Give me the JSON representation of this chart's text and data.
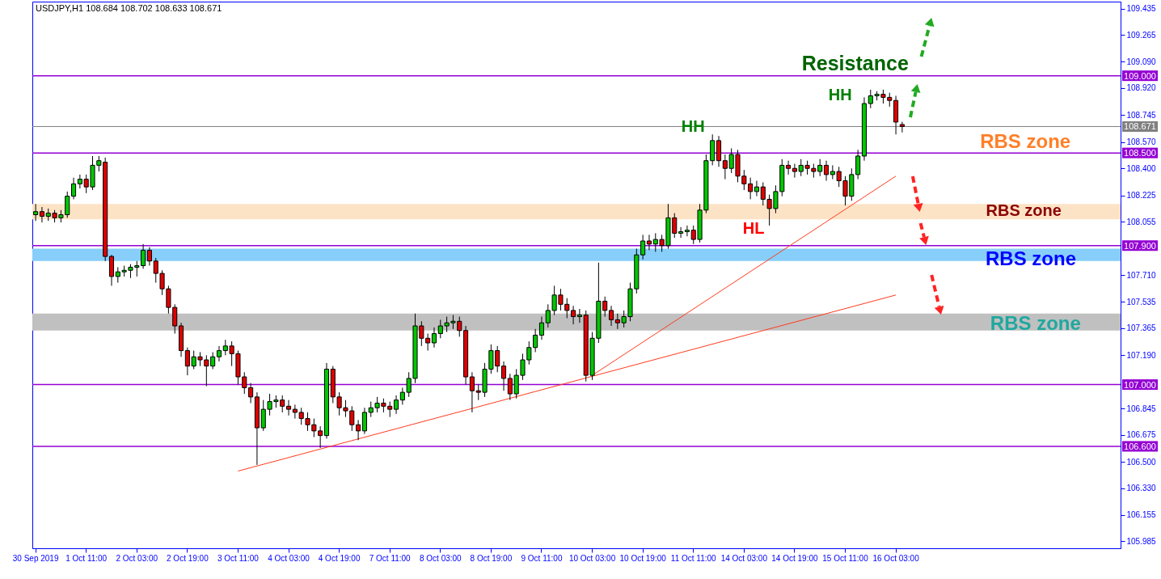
{
  "chart_data": {
    "type": "candlestick",
    "title": "USDJPY,H1  108.684 108.702 108.633 108.671",
    "categories": [
      "30 Sep 2019",
      null,
      null,
      null,
      null,
      null,
      null,
      null,
      "1 Oct 11:00",
      null,
      null,
      null,
      null,
      null,
      null,
      null,
      "2 Oct 03:00",
      null,
      null,
      null,
      null,
      null,
      null,
      null,
      "2 Oct 19:00",
      null,
      null,
      null,
      null,
      null,
      null,
      null,
      "3 Oct 11:00",
      null,
      null,
      null,
      null,
      null,
      null,
      null,
      "4 Oct 03:00",
      null,
      null,
      null,
      null,
      null,
      null,
      null,
      "4 Oct 19:00",
      null,
      null,
      null,
      null,
      null,
      null,
      null,
      "7 Oct 11:00",
      null,
      null,
      null,
      null,
      null,
      null,
      null,
      "8 Oct 03:00",
      null,
      null,
      null,
      null,
      null,
      null,
      null,
      "8 Oct 19:00",
      null,
      null,
      null,
      null,
      null,
      null,
      null,
      "9 Oct 11:00",
      null,
      null,
      null,
      null,
      null,
      null,
      null,
      "10 Oct 03:00",
      null,
      null,
      null,
      null,
      null,
      null,
      null,
      "10 Oct 19:00",
      null,
      null,
      null,
      null,
      null,
      null,
      null,
      "11 Oct 11:00",
      null,
      null,
      null,
      null,
      null,
      null,
      null,
      "14 Oct 03:00",
      null,
      null,
      null,
      null,
      null,
      null,
      null,
      "14 Oct 19:00",
      null,
      null,
      null,
      null,
      null,
      null,
      null,
      "15 Oct 11:00",
      null,
      null,
      null,
      null,
      null,
      null,
      null,
      "16 Oct 03:00",
      null,
      null,
      null,
      null,
      null,
      null,
      null,
      null,
      null,
      null,
      null,
      null,
      null,
      null,
      null,
      null,
      null,
      null,
      null,
      null,
      null,
      null,
      null,
      null,
      null,
      null,
      null,
      null,
      null,
      null,
      null,
      null,
      null,
      null,
      null
    ],
    "ohlc": [
      [
        108.1,
        108.17,
        108.06,
        108.12
      ],
      [
        108.12,
        108.15,
        108.05,
        108.09
      ],
      [
        108.09,
        108.14,
        108.06,
        108.11
      ],
      [
        108.11,
        108.13,
        108.05,
        108.08
      ],
      [
        108.08,
        108.13,
        108.05,
        108.1
      ],
      [
        108.1,
        108.25,
        108.08,
        108.22
      ],
      [
        108.22,
        108.34,
        108.2,
        108.3
      ],
      [
        108.3,
        108.36,
        108.27,
        108.33
      ],
      [
        108.33,
        108.36,
        108.24,
        108.28
      ],
      [
        108.28,
        108.48,
        108.26,
        108.42
      ],
      [
        108.42,
        108.48,
        108.38,
        108.45
      ],
      [
        108.44,
        108.47,
        107.8,
        107.83
      ],
      [
        107.83,
        107.84,
        107.64,
        107.7
      ],
      [
        107.7,
        107.76,
        107.66,
        107.73
      ],
      [
        107.73,
        107.77,
        107.7,
        107.74
      ],
      [
        107.74,
        107.78,
        107.69,
        107.76
      ],
      [
        107.76,
        107.8,
        107.7,
        107.77
      ],
      [
        107.77,
        107.91,
        107.75,
        107.87
      ],
      [
        107.87,
        107.89,
        107.77,
        107.8
      ],
      [
        107.8,
        107.82,
        107.66,
        107.72
      ],
      [
        107.72,
        107.74,
        107.58,
        107.62
      ],
      [
        107.62,
        107.64,
        107.46,
        107.5
      ],
      [
        107.5,
        107.52,
        107.33,
        107.38
      ],
      [
        107.38,
        107.4,
        107.18,
        107.22
      ],
      [
        107.22,
        107.24,
        107.06,
        107.12
      ],
      [
        107.12,
        107.22,
        107.1,
        107.18
      ],
      [
        107.18,
        107.21,
        107.12,
        107.16
      ],
      [
        107.16,
        107.19,
        106.99,
        107.12
      ],
      [
        107.12,
        107.21,
        107.1,
        107.18
      ],
      [
        107.18,
        107.25,
        107.15,
        107.22
      ],
      [
        107.22,
        107.29,
        107.19,
        107.25
      ],
      [
        107.25,
        107.28,
        107.12,
        107.2
      ],
      [
        107.2,
        107.22,
        107.0,
        107.05
      ],
      [
        107.05,
        107.08,
        106.94,
        106.98
      ],
      [
        106.98,
        107.01,
        106.88,
        106.92
      ],
      [
        106.92,
        106.95,
        106.48,
        106.72
      ],
      [
        106.72,
        106.9,
        106.7,
        106.84
      ],
      [
        106.84,
        106.94,
        106.8,
        106.89
      ],
      [
        106.89,
        106.93,
        106.85,
        106.9
      ],
      [
        106.9,
        106.93,
        106.82,
        106.86
      ],
      [
        106.86,
        106.9,
        106.8,
        106.84
      ],
      [
        106.84,
        106.87,
        106.78,
        106.82
      ],
      [
        106.82,
        106.85,
        106.74,
        106.78
      ],
      [
        106.78,
        106.82,
        106.7,
        106.74
      ],
      [
        106.74,
        106.78,
        106.66,
        106.7
      ],
      [
        106.7,
        106.73,
        106.59,
        106.67
      ],
      [
        106.67,
        107.14,
        106.65,
        107.1
      ],
      [
        107.1,
        107.12,
        106.88,
        106.92
      ],
      [
        106.92,
        106.95,
        106.8,
        106.85
      ],
      [
        106.85,
        106.9,
        106.79,
        106.83
      ],
      [
        106.83,
        106.86,
        106.7,
        106.74
      ],
      [
        106.74,
        106.77,
        106.64,
        106.7
      ],
      [
        106.7,
        106.85,
        106.68,
        106.82
      ],
      [
        106.82,
        106.89,
        106.79,
        106.85
      ],
      [
        106.85,
        106.92,
        106.82,
        106.88
      ],
      [
        106.88,
        106.91,
        106.82,
        106.86
      ],
      [
        106.86,
        106.89,
        106.79,
        106.84
      ],
      [
        106.84,
        106.93,
        106.81,
        106.9
      ],
      [
        106.9,
        106.98,
        106.87,
        106.95
      ],
      [
        106.95,
        107.08,
        106.92,
        107.04
      ],
      [
        107.04,
        107.46,
        107.01,
        107.38
      ],
      [
        107.38,
        107.41,
        107.25,
        107.3
      ],
      [
        107.3,
        107.33,
        107.22,
        107.27
      ],
      [
        107.27,
        107.37,
        107.24,
        107.33
      ],
      [
        107.33,
        107.42,
        107.3,
        107.38
      ],
      [
        107.38,
        107.44,
        107.34,
        107.4
      ],
      [
        107.4,
        107.45,
        107.36,
        107.41
      ],
      [
        107.41,
        107.44,
        107.31,
        107.35
      ],
      [
        107.35,
        107.38,
        107.0,
        107.05
      ],
      [
        107.05,
        107.08,
        106.82,
        106.96
      ],
      [
        106.96,
        107.0,
        106.9,
        106.95
      ],
      [
        106.95,
        107.14,
        106.92,
        107.1
      ],
      [
        107.1,
        107.26,
        107.07,
        107.22
      ],
      [
        107.22,
        107.25,
        107.08,
        107.12
      ],
      [
        107.12,
        107.15,
        106.96,
        107.04
      ],
      [
        107.04,
        107.07,
        106.9,
        106.94
      ],
      [
        106.94,
        107.1,
        106.91,
        107.06
      ],
      [
        107.06,
        107.2,
        107.03,
        107.16
      ],
      [
        107.16,
        107.28,
        107.13,
        107.24
      ],
      [
        107.24,
        107.36,
        107.21,
        107.32
      ],
      [
        107.32,
        107.44,
        107.29,
        107.4
      ],
      [
        107.4,
        107.52,
        107.37,
        107.48
      ],
      [
        107.48,
        107.64,
        107.45,
        107.58
      ],
      [
        107.58,
        107.62,
        107.48,
        107.52
      ],
      [
        107.52,
        107.56,
        107.43,
        107.48
      ],
      [
        107.48,
        107.51,
        107.39,
        107.44
      ],
      [
        107.44,
        107.49,
        107.4,
        107.45
      ],
      [
        107.45,
        107.48,
        107.02,
        107.06
      ],
      [
        107.06,
        107.34,
        107.03,
        107.3
      ],
      [
        107.3,
        107.79,
        107.27,
        107.54
      ],
      [
        107.54,
        107.57,
        107.44,
        107.48
      ],
      [
        107.48,
        107.51,
        107.38,
        107.42
      ],
      [
        107.42,
        107.46,
        107.36,
        107.4
      ],
      [
        107.4,
        107.48,
        107.37,
        107.44
      ],
      [
        107.44,
        107.66,
        107.41,
        107.62
      ],
      [
        107.62,
        107.88,
        107.59,
        107.84
      ],
      [
        107.84,
        107.97,
        107.81,
        107.93
      ],
      [
        107.93,
        107.97,
        107.87,
        107.91
      ],
      [
        107.91,
        107.98,
        107.86,
        107.94
      ],
      [
        107.94,
        107.97,
        107.86,
        107.9
      ],
      [
        107.9,
        108.17,
        107.88,
        108.08
      ],
      [
        108.08,
        108.11,
        107.95,
        107.98
      ],
      [
        107.98,
        108.02,
        107.95,
        107.99
      ],
      [
        107.99,
        108.03,
        107.96,
        108.0
      ],
      [
        108.0,
        108.03,
        107.91,
        107.94
      ],
      [
        107.94,
        108.17,
        107.92,
        108.13
      ],
      [
        108.13,
        108.49,
        108.11,
        108.45
      ],
      [
        108.45,
        108.62,
        108.42,
        108.58
      ],
      [
        108.58,
        108.61,
        108.41,
        108.45
      ],
      [
        108.45,
        108.49,
        108.33,
        108.4
      ],
      [
        108.4,
        108.53,
        108.37,
        108.49
      ],
      [
        108.49,
        108.52,
        108.31,
        108.35
      ],
      [
        108.35,
        108.39,
        108.26,
        108.3
      ],
      [
        108.3,
        108.34,
        108.2,
        108.25
      ],
      [
        108.25,
        108.32,
        108.22,
        108.28
      ],
      [
        108.28,
        108.31,
        108.16,
        108.2
      ],
      [
        108.2,
        108.23,
        108.03,
        108.14
      ],
      [
        108.14,
        108.29,
        108.11,
        108.25
      ],
      [
        108.25,
        108.46,
        108.22,
        108.42
      ],
      [
        108.42,
        108.45,
        108.36,
        108.4
      ],
      [
        108.4,
        108.43,
        108.34,
        108.38
      ],
      [
        108.38,
        108.46,
        108.35,
        108.42
      ],
      [
        108.42,
        108.45,
        108.36,
        108.4
      ],
      [
        108.4,
        108.43,
        108.34,
        108.38
      ],
      [
        108.38,
        108.46,
        108.35,
        108.42
      ],
      [
        108.42,
        108.45,
        108.32,
        108.36
      ],
      [
        108.36,
        108.42,
        108.33,
        108.38
      ],
      [
        108.38,
        108.41,
        108.28,
        108.32
      ],
      [
        108.32,
        108.35,
        108.16,
        108.22
      ],
      [
        108.22,
        108.4,
        108.19,
        108.36
      ],
      [
        108.36,
        108.52,
        108.33,
        108.48
      ],
      [
        108.48,
        108.86,
        108.45,
        108.82
      ],
      [
        108.82,
        108.91,
        108.79,
        108.87
      ],
      [
        108.87,
        108.9,
        108.84,
        108.88
      ],
      [
        108.88,
        108.91,
        108.82,
        108.86
      ],
      [
        108.86,
        108.89,
        108.8,
        108.84
      ],
      [
        108.84,
        108.87,
        108.62,
        108.7
      ],
      [
        108.684,
        108.702,
        108.633,
        108.671
      ],
      null,
      null,
      null,
      null,
      null,
      null,
      null,
      null,
      null,
      null,
      null,
      null,
      null,
      null,
      null,
      null,
      null,
      null,
      null,
      null,
      null,
      null,
      null,
      null,
      null,
      null,
      null,
      null,
      null,
      null,
      null,
      null,
      null,
      null
    ],
    "series": [
      {
        "type": "line",
        "color": "#ff3b1f",
        "x": [
          "3 Oct 11:00",
          "16 Oct 03:00"
        ],
        "values": [
          106.44,
          107.58
        ]
      },
      {
        "type": "line",
        "color": "#ff3b1f",
        "x": [
          "10 Oct 03:00",
          "16 Oct 03:00"
        ],
        "values": [
          107.06,
          108.35
        ]
      }
    ],
    "ylim": [
      105.94,
      109.48
    ],
    "yticks": [
      {
        "value": 105.985,
        "label": "105.985"
      },
      {
        "value": 106.155,
        "label": "106.155"
      },
      {
        "value": 106.33,
        "label": "106.330"
      },
      {
        "value": 106.5,
        "label": "106.500"
      },
      {
        "value": 106.675,
        "label": "106.675"
      },
      {
        "value": 106.845,
        "label": "106.845"
      },
      {
        "value": 107.19,
        "label": "107.190"
      },
      {
        "value": 107.365,
        "label": "107.365"
      },
      {
        "value": 107.535,
        "label": "107.535"
      },
      {
        "value": 107.71,
        "label": "107.710"
      },
      {
        "value": 108.055,
        "label": "108.055"
      },
      {
        "value": 108.225,
        "label": "108.225"
      },
      {
        "value": 108.4,
        "label": "108.400"
      },
      {
        "value": 108.57,
        "label": "108.570"
      },
      {
        "value": 108.745,
        "label": "108.745"
      },
      {
        "value": 108.92,
        "label": "108.920"
      },
      {
        "value": 109.09,
        "label": "109.090"
      },
      {
        "value": 109.265,
        "label": "109.265"
      },
      {
        "value": 109.435,
        "label": "109.435"
      }
    ],
    "ref_lines": [
      {
        "axis": "y",
        "value": 109.0,
        "label": "109.000",
        "color": "#9400d3"
      },
      {
        "axis": "y",
        "value": 108.5,
        "label": "108.500",
        "color": "#9400d3"
      },
      {
        "axis": "y",
        "value": 107.9,
        "label": "107.900",
        "color": "#9400d3"
      },
      {
        "axis": "y",
        "value": 107.0,
        "label": "107.000",
        "color": "#9400d3"
      },
      {
        "axis": "y",
        "value": 106.6,
        "label": "106.600",
        "color": "#9400d3"
      },
      {
        "axis": "y",
        "value": 108.671,
        "label": "108.671",
        "color": "#808080"
      }
    ],
    "bands": [
      {
        "axis": "y",
        "from": 107.8,
        "to": 107.88,
        "color": "#87cefa"
      },
      {
        "axis": "y",
        "from": 107.35,
        "to": 107.46,
        "color": "#c0c0c0"
      },
      {
        "axis": "y",
        "from": 108.07,
        "to": 108.17,
        "color": "#fde3c6"
      }
    ],
    "annotations": [
      "Resistance",
      "HH",
      "HH",
      "HL",
      "RBS zone",
      "RBS zone",
      "RBS zone",
      "RBS zone"
    ]
  }
}
